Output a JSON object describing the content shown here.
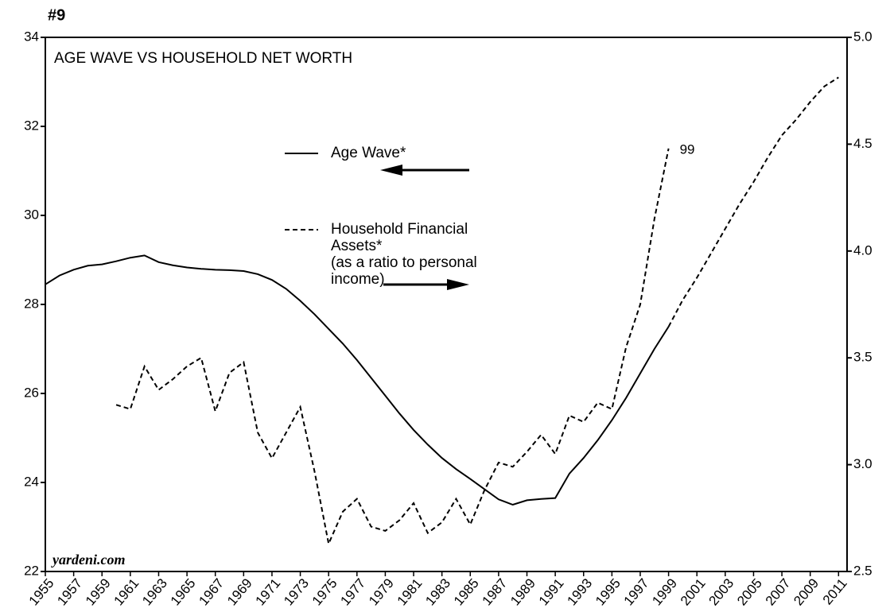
{
  "chart_data": {
    "type": "line",
    "page_label": "#9",
    "title": "AGE WAVE VS HOUSEHOLD NET WORTH",
    "source": "yardeni.com",
    "x": [
      1955,
      1956,
      1957,
      1958,
      1959,
      1960,
      1961,
      1962,
      1963,
      1964,
      1965,
      1966,
      1967,
      1968,
      1969,
      1970,
      1971,
      1972,
      1973,
      1974,
      1975,
      1976,
      1977,
      1978,
      1979,
      1980,
      1981,
      1982,
      1983,
      1984,
      1985,
      1986,
      1987,
      1988,
      1989,
      1990,
      1991,
      1992,
      1993,
      1994,
      1995,
      1996,
      1997,
      1998,
      1999,
      2000,
      2001,
      2002,
      2003,
      2004,
      2005,
      2006,
      2007,
      2008,
      2009,
      2010,
      2011
    ],
    "series": [
      {
        "name": "Age Wave*",
        "color": "#000000",
        "axis": "y",
        "dash": "solid",
        "projected_from": 1999,
        "values": [
          28.45,
          28.65,
          28.78,
          28.87,
          28.9,
          28.97,
          29.05,
          29.1,
          28.95,
          28.88,
          28.83,
          28.8,
          28.78,
          28.77,
          28.75,
          28.68,
          28.55,
          28.35,
          28.08,
          27.78,
          27.45,
          27.12,
          26.75,
          26.35,
          25.95,
          25.55,
          25.18,
          24.85,
          24.55,
          24.3,
          24.08,
          23.85,
          23.62,
          23.5,
          23.6,
          23.63,
          23.65,
          24.2,
          24.55,
          24.95,
          25.4,
          25.9,
          26.45,
          27.0,
          27.5,
          28.1,
          28.6,
          29.15,
          29.7,
          30.25,
          30.75,
          31.3,
          31.8,
          32.15,
          32.55,
          32.9,
          33.1
        ]
      },
      {
        "name": "Household Financial Assets*",
        "note": "(as a ratio to personal income)",
        "color": "#000000",
        "axis": "y2",
        "dash": "dashed",
        "values": [
          null,
          null,
          null,
          null,
          null,
          3.28,
          3.26,
          3.46,
          3.35,
          3.4,
          3.46,
          3.5,
          3.25,
          3.43,
          3.48,
          3.15,
          3.03,
          3.15,
          3.27,
          2.97,
          2.63,
          2.78,
          2.84,
          2.71,
          2.69,
          2.74,
          2.82,
          2.68,
          2.73,
          2.84,
          2.72,
          2.88,
          3.01,
          2.99,
          3.06,
          3.14,
          3.05,
          3.23,
          3.2,
          3.29,
          3.26,
          3.55,
          3.75,
          4.15,
          4.48,
          null,
          null,
          null,
          null,
          null,
          null,
          null,
          null,
          null,
          null,
          null,
          null
        ]
      }
    ],
    "annotations": [
      {
        "text": "99",
        "x": 1999,
        "y2": 4.48
      }
    ],
    "xlim": [
      1955,
      2011.6
    ],
    "xticks": [
      1955,
      1957,
      1959,
      1961,
      1963,
      1965,
      1967,
      1969,
      1971,
      1973,
      1975,
      1977,
      1979,
      1981,
      1983,
      1985,
      1987,
      1989,
      1991,
      1993,
      1995,
      1997,
      1999,
      2001,
      2003,
      2005,
      2007,
      2009,
      2011
    ],
    "ylim": [
      22,
      34
    ],
    "yticks": [
      22,
      24,
      26,
      28,
      30,
      32,
      34
    ],
    "y2lim": [
      2.5,
      5.0
    ],
    "y2ticks": [
      2.5,
      {
        "value": 3,
        "label": "3.0"
      },
      3.5,
      {
        "value": 4,
        "label": "4.0"
      },
      4.5,
      {
        "value": 5,
        "label": "5.0"
      }
    ],
    "grid": false
  }
}
